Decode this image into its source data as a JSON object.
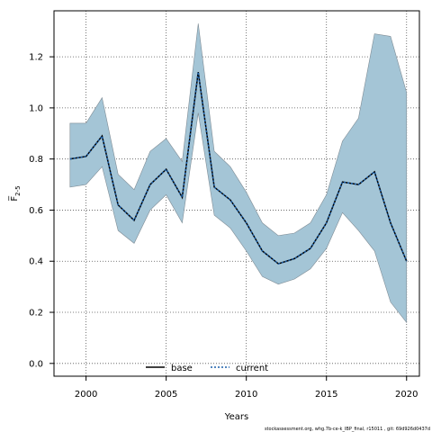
{
  "chart_data": {
    "type": "line",
    "xlabel": "Years",
    "ylabel": "F̅",
    "ylabel_subscript": "2-5",
    "xlim": [
      1998,
      2020.8
    ],
    "ylim": [
      -0.05,
      1.38
    ],
    "x_ticks": [
      2000,
      2005,
      2010,
      2015,
      2020
    ],
    "y_ticks": [
      0.0,
      0.2,
      0.4,
      0.6,
      0.8,
      1.0,
      1.2
    ],
    "x_tick_labels": [
      "2000",
      "2005",
      "2010",
      "2015",
      "2020"
    ],
    "y_tick_labels": [
      "0.0",
      "0.2",
      "0.4",
      "0.6",
      "0.8",
      "1.0",
      "1.2"
    ],
    "grid": true,
    "legend_position": "bottom-center",
    "x": [
      1999,
      2000,
      2001,
      2002,
      2003,
      2004,
      2005,
      2006,
      2007,
      2008,
      2009,
      2010,
      2011,
      2012,
      2013,
      2014,
      2015,
      2016,
      2017,
      2018,
      2019,
      2020
    ],
    "series": [
      {
        "name": "base",
        "style": "solid",
        "color": "#000000",
        "values": [
          0.8,
          0.81,
          0.89,
          0.62,
          0.56,
          0.7,
          0.76,
          0.65,
          1.14,
          0.69,
          0.64,
          0.55,
          0.44,
          0.39,
          0.41,
          0.45,
          0.55,
          0.71,
          0.7,
          0.75,
          0.55,
          0.4
        ]
      },
      {
        "name": "current",
        "style": "dotted",
        "color": "#1a5faa",
        "values": [
          0.8,
          0.81,
          0.89,
          0.62,
          0.56,
          0.7,
          0.76,
          0.65,
          1.14,
          0.69,
          0.64,
          0.55,
          0.44,
          0.39,
          0.41,
          0.45,
          0.55,
          0.71,
          0.7,
          0.75,
          0.55,
          0.4
        ]
      }
    ],
    "band": {
      "color": "#a4c5d6",
      "edge_color": "#7f8c95",
      "lower": [
        0.69,
        0.7,
        0.77,
        0.52,
        0.47,
        0.6,
        0.66,
        0.55,
        0.98,
        0.58,
        0.53,
        0.44,
        0.34,
        0.31,
        0.33,
        0.37,
        0.45,
        0.59,
        0.52,
        0.44,
        0.24,
        0.16
      ],
      "upper": [
        0.94,
        0.94,
        1.04,
        0.74,
        0.68,
        0.83,
        0.88,
        0.79,
        1.33,
        0.83,
        0.77,
        0.67,
        0.55,
        0.5,
        0.51,
        0.55,
        0.66,
        0.87,
        0.96,
        1.29,
        1.28,
        1.06
      ]
    }
  },
  "credit": "stockassessment.org, whg.7b-ce-k_IBP_final, r15011 , git: 69d926d0437d"
}
